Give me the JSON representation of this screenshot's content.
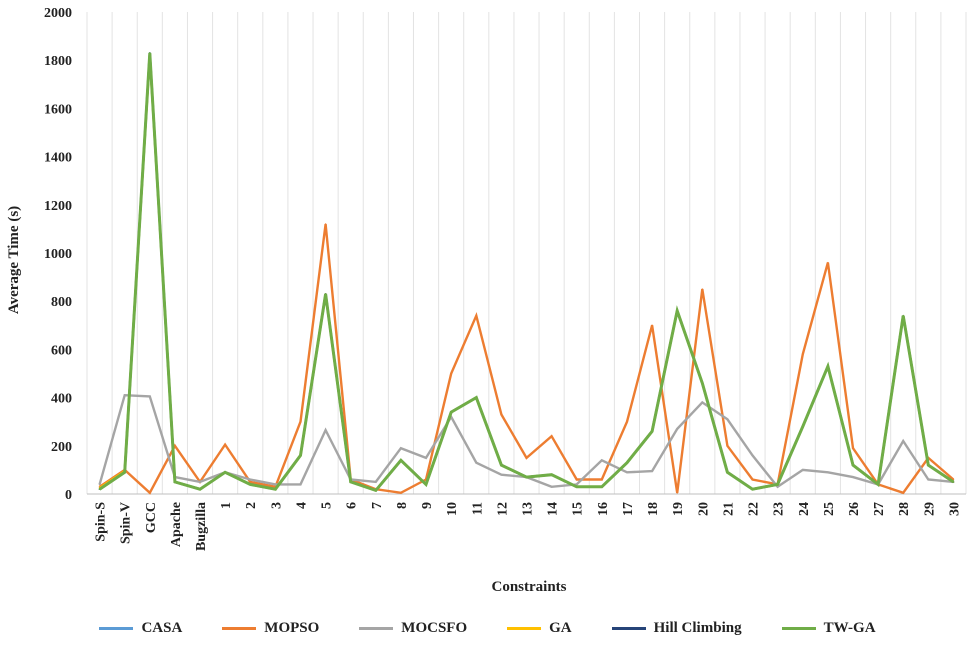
{
  "chart_data": {
    "type": "line",
    "title": "",
    "xlabel": "Constraints",
    "ylabel": "Average Time (s)",
    "ylim": [
      0,
      2000
    ],
    "yticks": [
      0,
      200,
      400,
      600,
      800,
      1000,
      1200,
      1400,
      1600,
      1800,
      2000
    ],
    "grid": "vertical",
    "legend_position": "bottom",
    "categories": [
      "Spin-S",
      "Spin-V",
      "GCC",
      "Apache",
      "Bugzilla",
      "1",
      "2",
      "3",
      "4",
      "5",
      "6",
      "7",
      "8",
      "9",
      "10",
      "11",
      "12",
      "13",
      "14",
      "15",
      "16",
      "17",
      "18",
      "19",
      "20",
      "21",
      "22",
      "23",
      "24",
      "25",
      "26",
      "27",
      "28",
      "29",
      "30"
    ],
    "series": [
      {
        "name": "CASA",
        "color": "#5b9bd5",
        "values": [
          20,
          90,
          1830,
          50,
          20,
          90,
          40,
          20,
          160,
          830,
          50,
          15,
          140,
          40,
          340,
          400,
          120,
          70,
          80,
          30,
          30,
          130,
          260,
          760,
          460,
          90,
          20,
          40,
          280,
          530,
          120,
          40,
          740,
          120,
          50
        ]
      },
      {
        "name": "MOPSO",
        "color": "#ed7d31",
        "values": [
          30,
          100,
          5,
          200,
          50,
          205,
          50,
          30,
          300,
          1120,
          60,
          20,
          5,
          60,
          500,
          740,
          330,
          150,
          240,
          60,
          60,
          300,
          700,
          5,
          850,
          200,
          60,
          40,
          580,
          960,
          190,
          40,
          5,
          150,
          60
        ]
      },
      {
        "name": "MOCSFO",
        "color": "#a5a5a5",
        "values": [
          40,
          410,
          405,
          70,
          50,
          90,
          60,
          40,
          40,
          265,
          60,
          50,
          190,
          150,
          320,
          130,
          80,
          70,
          30,
          40,
          140,
          90,
          95,
          270,
          380,
          310,
          160,
          30,
          100,
          90,
          70,
          40,
          220,
          60,
          50
        ]
      },
      {
        "name": "GA",
        "color": "#ffc000",
        "values": [
          25,
          95,
          1820,
          50,
          20,
          90,
          40,
          20,
          160,
          830,
          50,
          15,
          140,
          40,
          340,
          400,
          120,
          70,
          80,
          30,
          30,
          130,
          260,
          760,
          460,
          90,
          20,
          40,
          280,
          530,
          120,
          40,
          740,
          120,
          50
        ]
      },
      {
        "name": "Hill Climbing",
        "color": "#264478",
        "values": [
          20,
          90,
          1830,
          50,
          20,
          90,
          40,
          20,
          160,
          830,
          50,
          15,
          140,
          40,
          340,
          400,
          120,
          70,
          80,
          30,
          30,
          130,
          260,
          760,
          460,
          90,
          20,
          40,
          280,
          530,
          120,
          40,
          740,
          120,
          50
        ]
      },
      {
        "name": "TW-GA",
        "color": "#70ad47",
        "values": [
          20,
          90,
          1830,
          50,
          20,
          90,
          40,
          20,
          160,
          830,
          50,
          15,
          140,
          40,
          340,
          400,
          120,
          70,
          80,
          30,
          30,
          130,
          260,
          760,
          460,
          90,
          20,
          40,
          280,
          530,
          120,
          40,
          740,
          120,
          50
        ]
      }
    ]
  }
}
